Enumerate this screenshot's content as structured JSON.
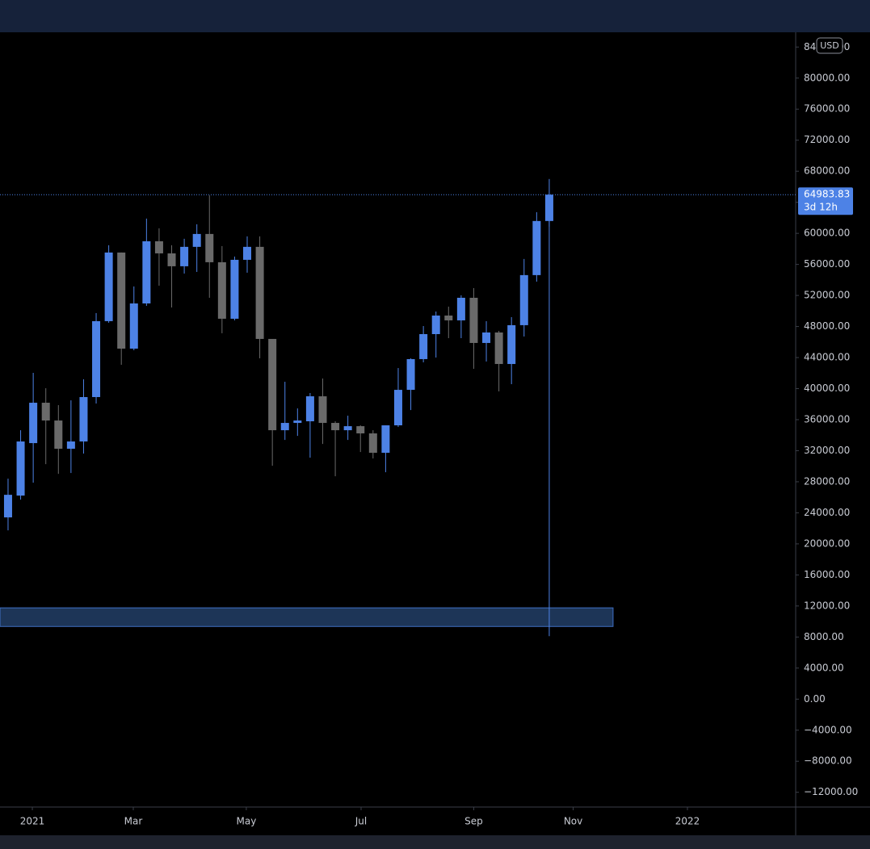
{
  "chart_data": {
    "type": "candlestick",
    "up_color": "#4d82e6",
    "down_color": "#6a6a6a",
    "xlim": [
      -0.64,
      62.58
    ],
    "xticks": [
      {
        "value": 1.93,
        "label": "2021"
      },
      {
        "value": 9.95,
        "label": "Mar"
      },
      {
        "value": 18.93,
        "label": "May"
      },
      {
        "value": 28.05,
        "label": "Jul"
      },
      {
        "value": 37.0,
        "label": "Sep"
      },
      {
        "value": 44.9,
        "label": "Nov"
      },
      {
        "value": 53.98,
        "label": "2022"
      }
    ],
    "ylim": [
      -13900,
      85900
    ],
    "yticks": [
      {
        "value": -12000,
        "label": "−12000.00"
      },
      {
        "value": -8000,
        "label": "−8000.00"
      },
      {
        "value": -4000,
        "label": "−4000.00"
      },
      {
        "value": 0,
        "label": "0.00"
      },
      {
        "value": 4000,
        "label": "4000.00"
      },
      {
        "value": 8000,
        "label": "8000.00"
      },
      {
        "value": 12000,
        "label": "12000.00"
      },
      {
        "value": 16000,
        "label": "16000.00"
      },
      {
        "value": 20000,
        "label": "20000.00"
      },
      {
        "value": 24000,
        "label": "24000.00"
      },
      {
        "value": 28000,
        "label": "28000.00"
      },
      {
        "value": 32000,
        "label": "32000.00"
      },
      {
        "value": 36000,
        "label": "36000.00"
      },
      {
        "value": 40000,
        "label": "40000.00"
      },
      {
        "value": 44000,
        "label": "44000.00"
      },
      {
        "value": 48000,
        "label": "48000.00"
      },
      {
        "value": 52000,
        "label": "52000.00"
      },
      {
        "value": 56000,
        "label": "56000.00"
      },
      {
        "value": 60000,
        "label": "60000.00"
      },
      {
        "value": 64000,
        "label": "64000.00"
      },
      {
        "value": 68000,
        "label": "68000.00"
      },
      {
        "value": 72000,
        "label": "72000.00"
      },
      {
        "value": 76000,
        "label": "76000.00"
      },
      {
        "value": 80000,
        "label": "80000.00"
      },
      {
        "value": 84000,
        "label": "84000.00"
      }
    ],
    "currency": "USD",
    "last_price_label": "64983.83",
    "countdown": "3d 12h",
    "open": [
      23410,
      26220,
      32980,
      38180,
      35890,
      32250,
      33190,
      38910,
      48690,
      57530,
      45150,
      50970,
      58980,
      57420,
      55760,
      58260,
      59920,
      56280,
      49000,
      56590,
      58260,
      46400,
      34640,
      35580,
      35790,
      39010,
      35580,
      34640,
      35160,
      34230,
      31730,
      35270,
      39840,
      43800,
      47020,
      49410,
      48790,
      51700,
      45880,
      47230,
      43170,
      48170,
      54620,
      61590
    ],
    "high": [
      28400,
      34640,
      42030,
      40050,
      37870,
      38490,
      41200,
      49730,
      58470,
      57530,
      53160,
      61900,
      60650,
      58470,
      59300,
      61170,
      64900,
      58360,
      57010,
      59610,
      59610,
      46400,
      40880,
      37450,
      39430,
      41300,
      35790,
      36510,
      35270,
      34640,
      35270,
      42650,
      43900,
      48060,
      49930,
      50560,
      52020,
      52950,
      48690,
      47440,
      49210,
      56700,
      62730,
      67000
    ],
    "low": [
      21740,
      25700,
      27880,
      30270,
      29020,
      29130,
      31630,
      38080,
      48480,
      43070,
      44940,
      50660,
      53260,
      50450,
      54820,
      55030,
      51700,
      47130,
      48790,
      54930,
      43900,
      30060,
      33390,
      33910,
      31100,
      32870,
      28710,
      33390,
      31830,
      31000,
      29230,
      35060,
      37240,
      43380,
      44000,
      46500,
      46500,
      42550,
      43490,
      39640,
      40570,
      46710,
      53780,
      60860
    ],
    "close": [
      26320,
      33190,
      38180,
      35890,
      32250,
      33190,
      38910,
      48690,
      57530,
      45150,
      50970,
      58980,
      57420,
      55760,
      58260,
      59920,
      56280,
      49000,
      56590,
      58260,
      46400,
      34640,
      35580,
      35890,
      39010,
      35580,
      34640,
      35160,
      34230,
      31730,
      35270,
      39840,
      43800,
      47020,
      49410,
      48790,
      51700,
      45880,
      47230,
      43170,
      48170,
      54620,
      61590,
      64983.83
    ],
    "zone": {
      "x_end": 48.07,
      "low": 9360,
      "high": 11760,
      "color": "#1d3557"
    },
    "vline": {
      "x": 43,
      "low": 8110,
      "high": 64983.83
    }
  }
}
